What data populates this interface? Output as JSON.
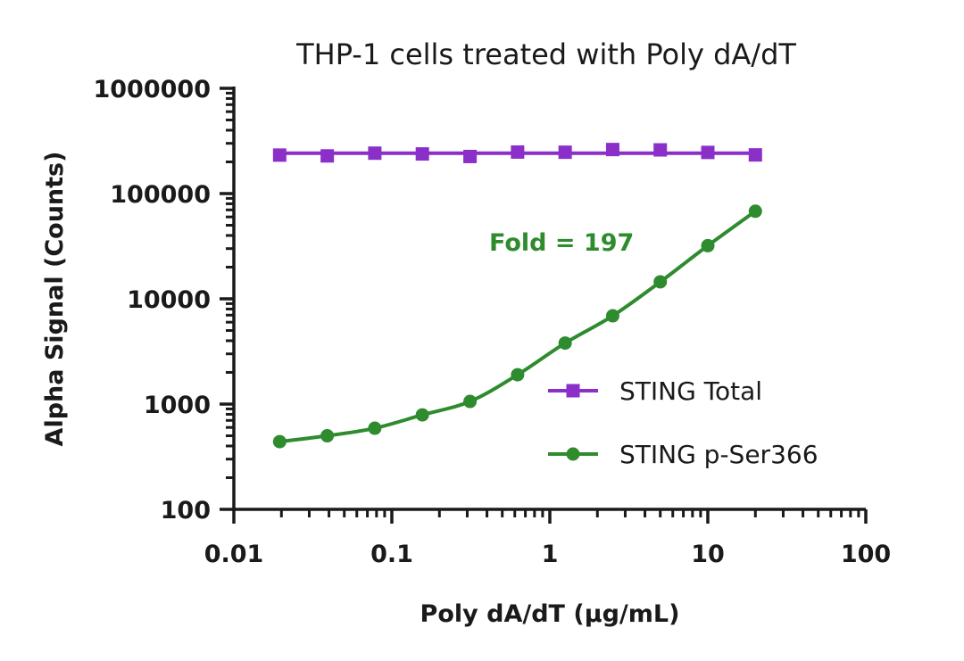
{
  "chart_data": {
    "type": "line",
    "title": "THP-1 cells treated with Poly dA/dT",
    "xlabel": "Poly dA/dT (µg/mL)",
    "ylabel": "Alpha Signal (Counts)",
    "xscale": "log",
    "yscale": "log",
    "xlim": [
      0.01,
      100
    ],
    "ylim": [
      100,
      1000000
    ],
    "x_ticks": [
      0.01,
      0.1,
      1,
      10,
      100
    ],
    "x_tick_labels": [
      "0.01",
      "0.1",
      "1",
      "10",
      "100"
    ],
    "y_ticks": [
      100,
      1000,
      10000,
      100000,
      1000000
    ],
    "y_tick_labels": [
      "100",
      "1000",
      "10000",
      "100000",
      "1000000"
    ],
    "grid": false,
    "legend_position": "bottom-right",
    "annotation": {
      "text": "Fold = 197",
      "color": "#2e8b2e"
    },
    "x": [
      0.0195,
      0.039,
      0.078,
      0.156,
      0.3125,
      0.625,
      1.25,
      2.5,
      5,
      10,
      20
    ],
    "series": [
      {
        "name": "STING Total",
        "color": "#8b2fc9",
        "marker": "square",
        "values": [
          232000,
          228000,
          242000,
          238000,
          225000,
          248000,
          247000,
          262000,
          260000,
          246000,
          233000
        ]
      },
      {
        "name": "STING p-Ser366",
        "color": "#2e8b2e",
        "marker": "circle",
        "values": [
          440,
          500,
          590,
          790,
          1060,
          1900,
          3800,
          6900,
          14500,
          32000,
          68000
        ]
      }
    ]
  }
}
